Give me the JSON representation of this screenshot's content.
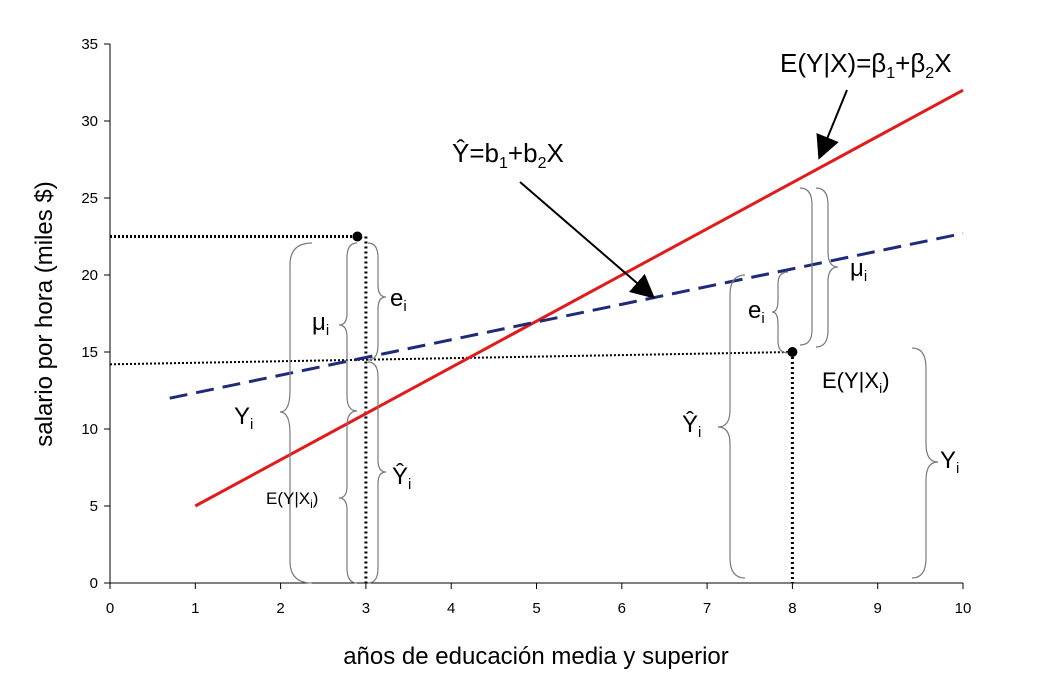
{
  "chart_data": {
    "type": "line",
    "xlabel": "años de educación media y superior",
    "ylabel": "salario por hora (miles $)",
    "xlim": [
      0,
      10
    ],
    "ylim": [
      0,
      35
    ],
    "x_ticks": [
      "0",
      "1",
      "2",
      "3",
      "4",
      "5",
      "6",
      "7",
      "8",
      "9",
      "10"
    ],
    "y_ticks": [
      "0",
      "5",
      "10",
      "15",
      "20",
      "25",
      "30",
      "35"
    ],
    "grid": false,
    "series": [
      {
        "name": "E(Y|X)=β1+β2X",
        "style": "solid",
        "color": "#e31a1c",
        "x": [
          1,
          10
        ],
        "y": [
          5,
          32
        ]
      },
      {
        "name": "Ŷ=b1+b2X",
        "style": "dashed",
        "color": "#1f2a7a",
        "x": [
          0.7,
          10
        ],
        "y": [
          12,
          22.7
        ]
      }
    ],
    "points": [
      {
        "x": 2.9,
        "y": 22.5
      },
      {
        "x": 8,
        "y": 15
      }
    ],
    "annotations": {
      "pop_eq": {
        "main": "E(Y|X)=β",
        "sub1": "1",
        "mid": "+β",
        "sub2": "2",
        "tail": "X"
      },
      "sample_eq": {
        "main": "Ŷ=b",
        "sub1": "1",
        "mid": "+b",
        "sub2": "2",
        "tail": "X"
      },
      "mu": {
        "main": "μ",
        "sub": "i"
      },
      "e": {
        "main": "e",
        "sub": "i"
      },
      "Y": {
        "main": "Y",
        "sub": "i"
      },
      "Yhat": {
        "main": "Ŷ",
        "sub": "i"
      },
      "EYX_left": {
        "main": "E(Y|X",
        "sub": "i",
        "tail": ")"
      },
      "EYX_right": {
        "main": "E(Y|X",
        "sub": "i",
        "tail": ")"
      }
    }
  }
}
